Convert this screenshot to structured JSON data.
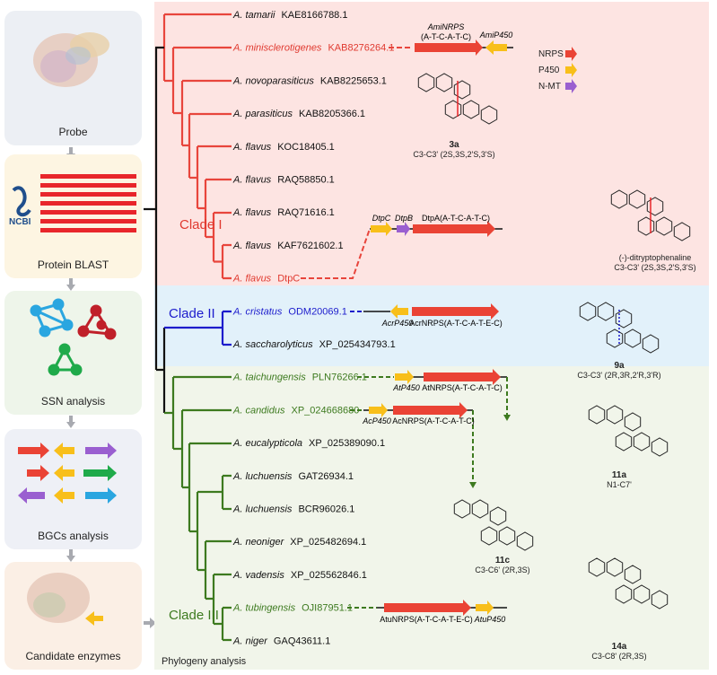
{
  "workflow": [
    {
      "label": "Probe"
    },
    {
      "label": "Protein BLAST",
      "logo": "NCBI"
    },
    {
      "label": "SSN analysis"
    },
    {
      "label": "BGCs analysis"
    },
    {
      "label": "Candidate enzymes"
    }
  ],
  "panel_label": "Phylogeny analysis",
  "colors": {
    "clade1": "#e0392f",
    "clade2": "#1c1ccc",
    "clade3": "#3d7a1f",
    "nrps": "#ea4335",
    "p450": "#f8bf1a",
    "nmt": "#9a5fd0"
  },
  "clades": [
    {
      "label": "Clade I"
    },
    {
      "label": "Clade II"
    },
    {
      "label": "Clade III"
    }
  ],
  "leaves": [
    {
      "species": "A. tamarii",
      "accession": "KAE8166788.1",
      "clade": 1,
      "hl": false
    },
    {
      "species": "A. minisclerotigenes",
      "accession": "KAB8276264.1",
      "clade": 1,
      "hl": true
    },
    {
      "species": "A. novoparasiticus",
      "accession": "KAB8225653.1",
      "clade": 1,
      "hl": false
    },
    {
      "species": "A. parasiticus",
      "accession": "KAB8205366.1",
      "clade": 1,
      "hl": false
    },
    {
      "species": "A. flavus",
      "accession": "KOC18405.1",
      "clade": 1,
      "hl": false
    },
    {
      "species": "A. flavus",
      "accession": "RAQ58850.1",
      "clade": 1,
      "hl": false
    },
    {
      "species": "A. flavus",
      "accession": "RAQ71616.1",
      "clade": 1,
      "hl": false
    },
    {
      "species": "A. flavus",
      "accession": "KAF7621602.1",
      "clade": 1,
      "hl": false
    },
    {
      "species": "A. flavus",
      "accession": "DtpC",
      "clade": 1,
      "hl": true
    },
    {
      "species": "A. cristatus",
      "accession": "ODM20069.1",
      "clade": 2,
      "hl": true
    },
    {
      "species": "A. saccharolyticus",
      "accession": "XP_025434793.1",
      "clade": 2,
      "hl": false
    },
    {
      "species": "A. taichungensis",
      "accession": "PLN76266.1",
      "clade": 3,
      "hl": true
    },
    {
      "species": "A. candidus",
      "accession": "XP_024668680",
      "clade": 3,
      "hl": true
    },
    {
      "species": "A. eucalypticola",
      "accession": "XP_025389090.1",
      "clade": 3,
      "hl": false
    },
    {
      "species": "A. luchuensis",
      "accession": "GAT26934.1",
      "clade": 3,
      "hl": false
    },
    {
      "species": "A. luchuensis",
      "accession": "BCR96026.1",
      "clade": 3,
      "hl": false
    },
    {
      "species": "A. neoniger",
      "accession": "XP_025482694.1",
      "clade": 3,
      "hl": false
    },
    {
      "species": "A. vadensis",
      "accession": "XP_025562846.1",
      "clade": 3,
      "hl": false
    },
    {
      "species": "A. tubingensis",
      "accession": "OJI87951.1",
      "clade": 3,
      "hl": true
    },
    {
      "species": "A. niger",
      "accession": "GAQ43611.1",
      "clade": 3,
      "hl": false
    }
  ],
  "legend": [
    {
      "label": "NRPS",
      "type": "nrps"
    },
    {
      "label": "P450",
      "type": "p450"
    },
    {
      "label": "N-MT",
      "type": "nmt"
    }
  ],
  "genes": {
    "ami_nrps": "AmiNRPS",
    "ami_nrps_dom": "(A-T-C-A-T-C)",
    "ami_p450": "AmiP450",
    "dtpc": "DtpC",
    "dtpb": "DtpB",
    "dtpa": "DtpA(A-T-C-A-T-C)",
    "acr_p450": "AcrP450",
    "acr_nrps": "AcrNRPS(A-T-C-A-T-E-C)",
    "at_p450": "AtP450",
    "at_nrps": "AtNRPS(A-T-C-A-T-C)",
    "ac_p450": "AcP450",
    "ac_nrps": "AcNRPS(A-T-C-A-T-C)",
    "atu_nrps": "AtuNRPS(A-T-C-A-T-E-C)",
    "atu_p450": "AtuP450"
  },
  "compounds": [
    {
      "id": "3a",
      "linkage": "C3-C3' (2S,3S,2'S,3'S)"
    },
    {
      "id": "(-)-ditryptophenaline",
      "linkage": "C3-C3' (2S,3S,2'S,3'S)"
    },
    {
      "id": "9a",
      "linkage": "C3-C3' (2R,3R,2'R,3'R)"
    },
    {
      "id": "11a",
      "linkage": "N1-C7'"
    },
    {
      "id": "11c",
      "linkage": "C3-C6' (2R,3S)"
    },
    {
      "id": "14a",
      "linkage": "C3-C8' (2R,3S)"
    }
  ]
}
